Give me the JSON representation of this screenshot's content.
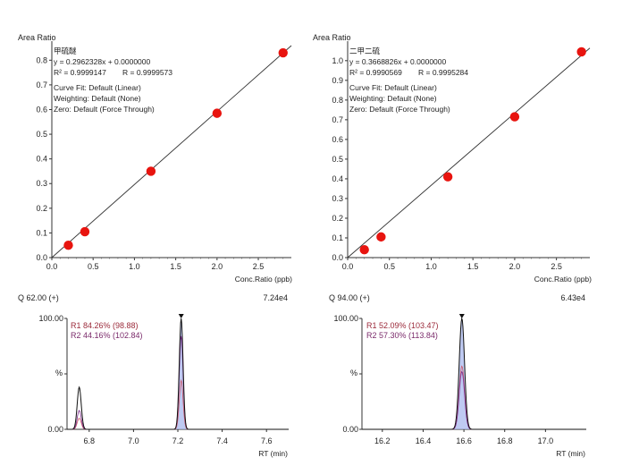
{
  "chart_data": [
    {
      "type": "scatter",
      "panel": "calibration-left",
      "ylabel": "Area Ratio",
      "xlabel": "Conc.Ratio (ppb)",
      "xlim": [
        0,
        2.9
      ],
      "ylim": [
        0,
        0.87
      ],
      "xticks": [
        "0.0",
        "0.5",
        "1.0",
        "1.5",
        "2.0",
        "2.5"
      ],
      "yticks": [
        "0.0",
        "0.1",
        "0.2",
        "0.3",
        "0.4",
        "0.5",
        "0.6",
        "0.7",
        "0.8"
      ],
      "compound": "甲硫醚",
      "equation": "y = 0.2962328x + 0.0000000",
      "r2": "R² = 0.9999147",
      "r": "R = 0.9999573",
      "curve_fit": "Curve Fit: Default (Linear)",
      "weighting": "Weighting: Default (None)",
      "zero": "Zero: Default (Force Through)",
      "slope": 0.2962328,
      "fit_x_max": 2.9,
      "x": [
        0.2,
        0.4,
        1.2,
        2.0,
        2.8
      ],
      "y": [
        0.05,
        0.105,
        0.35,
        0.585,
        0.83
      ],
      "color": "#e8140f"
    },
    {
      "type": "scatter",
      "panel": "calibration-right",
      "ylabel": "Area Ratio",
      "xlabel": "Conc.Ratio (ppb)",
      "xlim": [
        0,
        2.9
      ],
      "ylim": [
        0,
        1.09
      ],
      "xticks": [
        "0.0",
        "0.5",
        "1.0",
        "1.5",
        "2.0",
        "2.5"
      ],
      "yticks": [
        "0.0",
        "0.1",
        "0.2",
        "0.3",
        "0.4",
        "0.5",
        "0.6",
        "0.7",
        "0.8",
        "0.9",
        "1.0"
      ],
      "compound": "二甲二硫",
      "equation": "y = 0.3668826x + 0.0000000",
      "r2": "R² = 0.9990569",
      "r": "R = 0.9995284",
      "curve_fit": "Curve Fit: Default (Linear)",
      "weighting": "Weighting: Default (None)",
      "zero": "Zero: Default (Force Through)",
      "slope": 0.3668826,
      "fit_x_max": 2.9,
      "x": [
        0.2,
        0.4,
        1.2,
        2.0,
        2.8
      ],
      "y": [
        0.04,
        0.105,
        0.41,
        0.715,
        1.045
      ],
      "color": "#e8140f"
    },
    {
      "type": "line",
      "panel": "chromatogram-left",
      "header_left": "Q 62.00 (+)",
      "header_right": "7.24e4",
      "xlabel": "RT (min)",
      "ylabel": "%",
      "xlim": [
        6.7,
        7.7
      ],
      "ylim": [
        0,
        100
      ],
      "xticks": [
        "6.8",
        "7.0",
        "7.2",
        "7.4",
        "7.6"
      ],
      "ytick_top": "100.00",
      "ytick_bottom": "0.00",
      "ratio1": "R1 84.26% (98.88)",
      "ratio2": "R2 44.16% (102.84)",
      "main_peak_rt": 7.215,
      "side_peak_rt": 6.755,
      "series": [
        {
          "name": "Q",
          "color": "#111111",
          "peaks": [
            {
              "rt": 6.755,
              "height": 38,
              "sigma": 0.009
            },
            {
              "rt": 7.215,
              "height": 100,
              "sigma": 0.0085
            }
          ]
        },
        {
          "name": "R1",
          "color": "#7a2a8a",
          "peaks": [
            {
              "rt": 6.755,
              "height": 17,
              "sigma": 0.009
            },
            {
              "rt": 7.215,
              "height": 84,
              "sigma": 0.0085
            }
          ]
        },
        {
          "name": "R2",
          "color": "#cc5566",
          "peaks": [
            {
              "rt": 6.755,
              "height": 10,
              "sigma": 0.009
            },
            {
              "rt": 7.215,
              "height": 44,
              "sigma": 0.0085
            }
          ]
        }
      ]
    },
    {
      "type": "line",
      "panel": "chromatogram-right",
      "header_left": "Q 94.00 (+)",
      "header_right": "6.43e4",
      "xlabel": "RT (min)",
      "ylabel": "%",
      "xlim": [
        16.1,
        17.2
      ],
      "ylim": [
        0,
        100
      ],
      "xticks": [
        "16.2",
        "16.4",
        "16.6",
        "16.8",
        "17.0"
      ],
      "ytick_top": "100.00",
      "ytick_bottom": "0.00",
      "ratio1": "R1 52.09% (103.47)",
      "ratio2": "R2 57.30% (113.84)",
      "main_peak_rt": 16.59,
      "series": [
        {
          "name": "Q",
          "color": "#111111",
          "peaks": [
            {
              "rt": 16.59,
              "height": 100,
              "sigma": 0.013
            }
          ]
        },
        {
          "name": "R1",
          "color": "#7a2a8a",
          "peaks": [
            {
              "rt": 16.59,
              "height": 52,
              "sigma": 0.013
            }
          ]
        },
        {
          "name": "R2",
          "color": "#cc5566",
          "peaks": [
            {
              "rt": 16.59,
              "height": 57,
              "sigma": 0.013
            }
          ]
        }
      ]
    }
  ]
}
